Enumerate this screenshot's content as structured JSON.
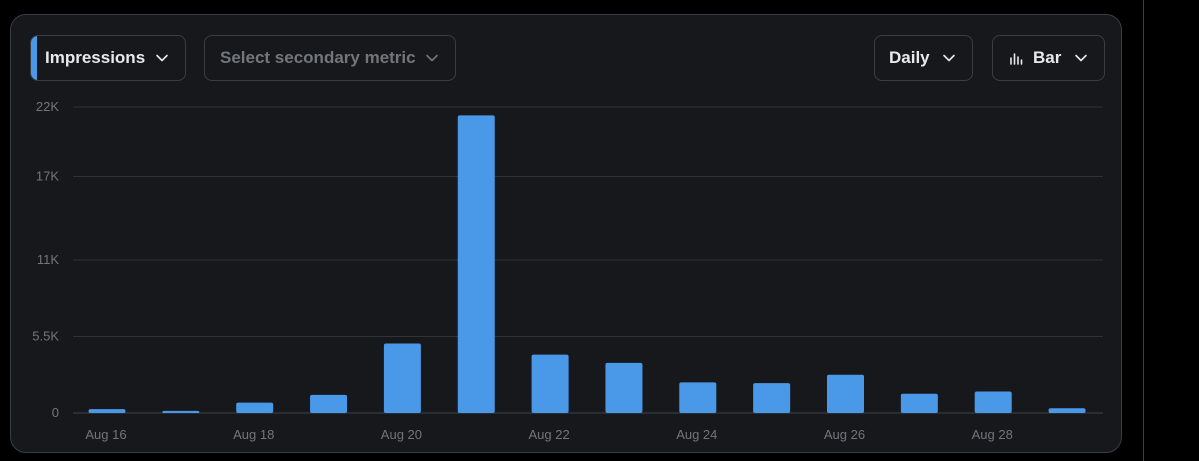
{
  "controls": {
    "primary_metric": "Impressions",
    "secondary_metric_placeholder": "Select secondary metric",
    "interval": "Daily",
    "chart_type": "Bar"
  },
  "colors": {
    "background": "#000000",
    "card": "#16181c",
    "bar": "#4a99e9",
    "text": "#e7e9ea",
    "muted": "#71767b",
    "grid": "#2f3336"
  },
  "icons": [
    "chevron-down-icon",
    "bar-chart-icon"
  ],
  "chart_data": {
    "type": "bar",
    "series": [
      {
        "values": [
          280,
          150,
          750,
          1300,
          5000,
          21400,
          4200,
          3600,
          2200,
          2150,
          2750,
          1380,
          1550,
          340
        ]
      }
    ],
    "x_tick_labels": [
      "Aug 16",
      "Aug 18",
      "Aug 20",
      "Aug 22",
      "Aug 24",
      "Aug 26",
      "Aug 28"
    ],
    "x_tick_indices": [
      0,
      2,
      4,
      6,
      8,
      10,
      12
    ],
    "y_ticks": [
      0,
      5500,
      11000,
      17000,
      22000
    ],
    "y_tick_labels": [
      "0",
      "5.5K",
      "11K",
      "17K",
      "22K"
    ],
    "ylim": [
      0,
      22000
    ],
    "grid": true
  }
}
